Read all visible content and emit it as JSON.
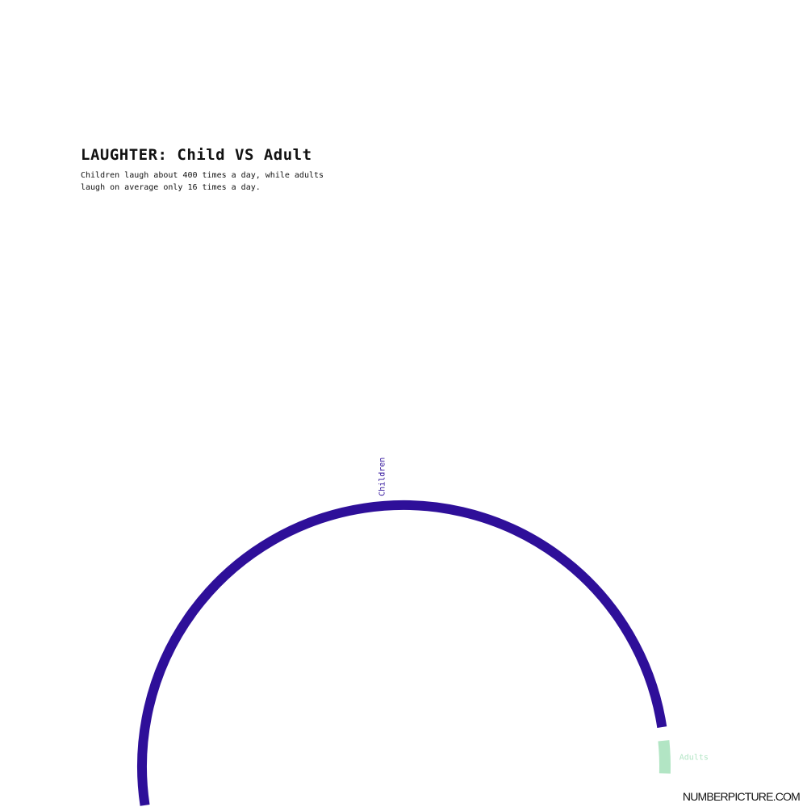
{
  "title": "LAUGHTER: Child VS Adult",
  "subtitle": "Children laugh about 400 times a day, while adults laugh on average only 16 times a day.",
  "footer": "NUMBERPICTURE.COM",
  "colors": {
    "children": "#2e0f99",
    "adults": "#b2e5c4"
  },
  "chart_data": {
    "type": "radial-bar",
    "categories": [
      "Children",
      "Adults"
    ],
    "values": [
      400,
      16
    ],
    "unit": "times a day"
  }
}
